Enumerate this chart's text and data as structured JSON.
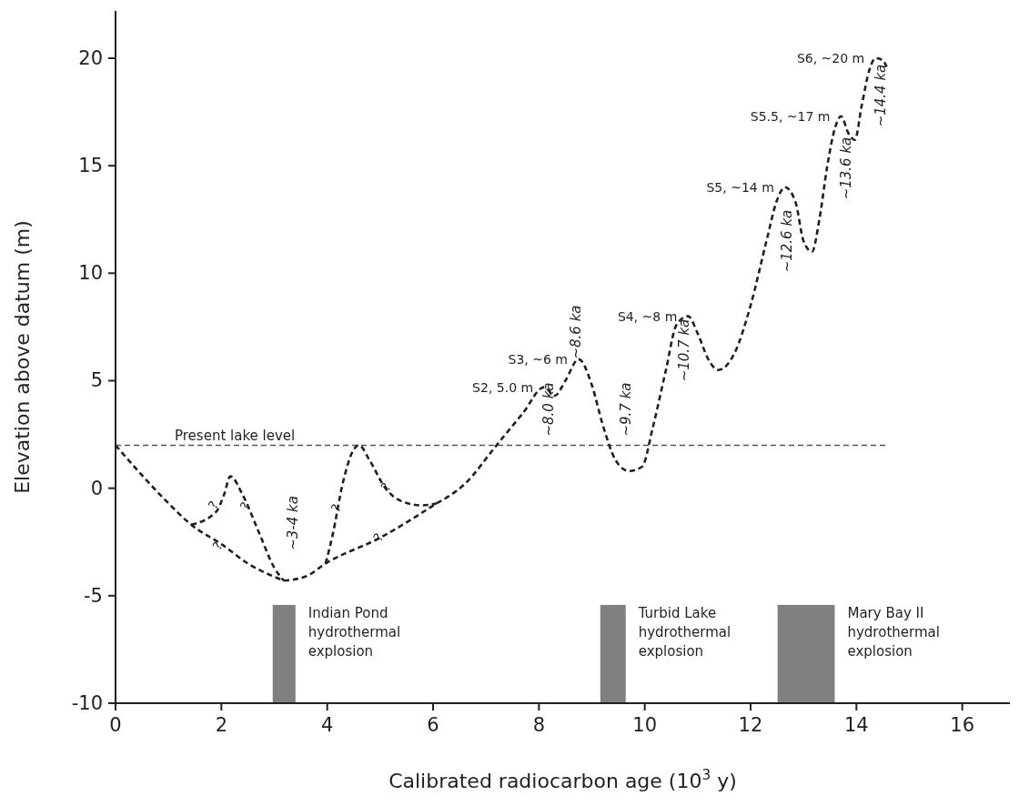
{
  "chart_data": {
    "type": "line",
    "xlabel": "Calibrated radiocarbon age (10$^{3}$ y)",
    "ylabel": "Elevation above datum (m)",
    "xlim": [
      0,
      16.9
    ],
    "ylim": [
      -10,
      22.2
    ],
    "xticks": [
      0,
      2,
      4,
      6,
      8,
      10,
      12,
      14,
      16
    ],
    "yticks": [
      -10,
      -5,
      0,
      5,
      10,
      15,
      20
    ],
    "grid": false,
    "marker": "none",
    "line_style": "dashed",
    "series": [
      {
        "color": "#231f20",
        "x": [
          0,
          0.5,
          1.0,
          1.43,
          2.0,
          2.5,
          3.18
        ],
        "values": [
          2,
          0.6,
          -0.7,
          -1.7,
          -2.6,
          -3.5,
          -4.3
        ]
      },
      {
        "color": "#231f20",
        "x": [
          1.43,
          1.9,
          2.05,
          2.17,
          2.4,
          2.7,
          3.0,
          3.18
        ],
        "values": [
          -1.7,
          -1.1,
          -0.3,
          0.55,
          -0.3,
          -2.0,
          -3.7,
          -4.3
        ]
      },
      {
        "color": "#231f20",
        "x": [
          3.18,
          3.6,
          3.97,
          5.0,
          6.07
        ],
        "values": [
          -4.3,
          -4.1,
          -3.5,
          -2.3,
          -0.7
        ]
      },
      {
        "color": "#231f20",
        "x": [
          3.97,
          4.1,
          4.3,
          4.5,
          4.6,
          4.8,
          5.1,
          5.4,
          5.8,
          6.07
        ],
        "values": [
          -3.5,
          -2.2,
          0.3,
          1.8,
          2.0,
          1.3,
          0,
          -0.6,
          -0.8,
          -0.7
        ]
      },
      {
        "color": "#231f20",
        "x": [
          6.07,
          6.6,
          7.2,
          7.7,
          8.1,
          8.3,
          8.5,
          8.75,
          9.0,
          9.2,
          9.45,
          9.7,
          9.95,
          10.15,
          10.4,
          10.6,
          10.82,
          11.0,
          11.2,
          11.39,
          11.7,
          12.0,
          12.3,
          12.5,
          12.65,
          12.85,
          13.0,
          13.16,
          13.3,
          13.45,
          13.6,
          13.71,
          13.85,
          13.97,
          14.1,
          14.25,
          14.36,
          14.5,
          14.57
        ],
        "values": [
          -0.7,
          0.2,
          2.0,
          3.5,
          4.7,
          4.3,
          5.0,
          6.0,
          4.8,
          3.0,
          1.3,
          0.8,
          1.0,
          2.8,
          5.5,
          7.6,
          8.0,
          7.2,
          6.0,
          5.5,
          6.3,
          8.5,
          11.5,
          13.4,
          14.0,
          13.3,
          11.5,
          11.0,
          12.5,
          15.0,
          16.8,
          17.3,
          16.5,
          16.2,
          17.8,
          19.5,
          20.0,
          19.9,
          19.6
        ]
      }
    ],
    "ref_lines": [
      {
        "axis": "y",
        "value": 2,
        "label": "Present lake level",
        "color": "#555555",
        "line_style": "dashed"
      }
    ],
    "bands": [
      {
        "axis": "x",
        "from": 2.97,
        "to": 3.4,
        "label": "Indian Pond\nhydrothermal\nexplosion",
        "color": "#808080"
      },
      {
        "axis": "x",
        "from": 9.16,
        "to": 9.64,
        "label": "Turbid Lake\nhydrothermal\nexplosion",
        "color": "#808080"
      },
      {
        "axis": "x",
        "from": 12.51,
        "to": 13.59,
        "label": "Mary Bay II\nhydrothermal\nexplosion",
        "color": "#808080"
      }
    ],
    "annotations": [
      {
        "text": "S2, 5.0 m",
        "x": 8.1,
        "y": 4.7
      },
      {
        "text": "S3, ~6 m",
        "x": 8.75,
        "y": 6.0
      },
      {
        "text": "S4, ~8 m",
        "x": 10.82,
        "y": 8.0
      },
      {
        "text": "S5, ~14 m",
        "x": 12.65,
        "y": 14.0
      },
      {
        "text": "S5.5, ~17 m",
        "x": 13.71,
        "y": 17.3
      },
      {
        "text": "S6, ~20 m",
        "x": 14.36,
        "y": 20.0
      },
      "~3-4 ka",
      "~8.0 ka",
      "~8.6 ka",
      "~9.7 ka",
      "~10.7 ka",
      "~12.6 ka",
      "~13.6 ka",
      "~14.4 ka",
      {
        "text": "?",
        "x": 1.86,
        "y": -0.8
      },
      {
        "text": "?",
        "x": 2.46,
        "y": -0.85
      },
      {
        "text": "?",
        "x": 1.94,
        "y": -2.7
      },
      {
        "text": "?",
        "x": 4.18,
        "y": -0.95
      },
      {
        "text": "?",
        "x": 5.12,
        "y": 0.05
      },
      {
        "text": "?",
        "x": 4.98,
        "y": -2.3
      }
    ]
  }
}
